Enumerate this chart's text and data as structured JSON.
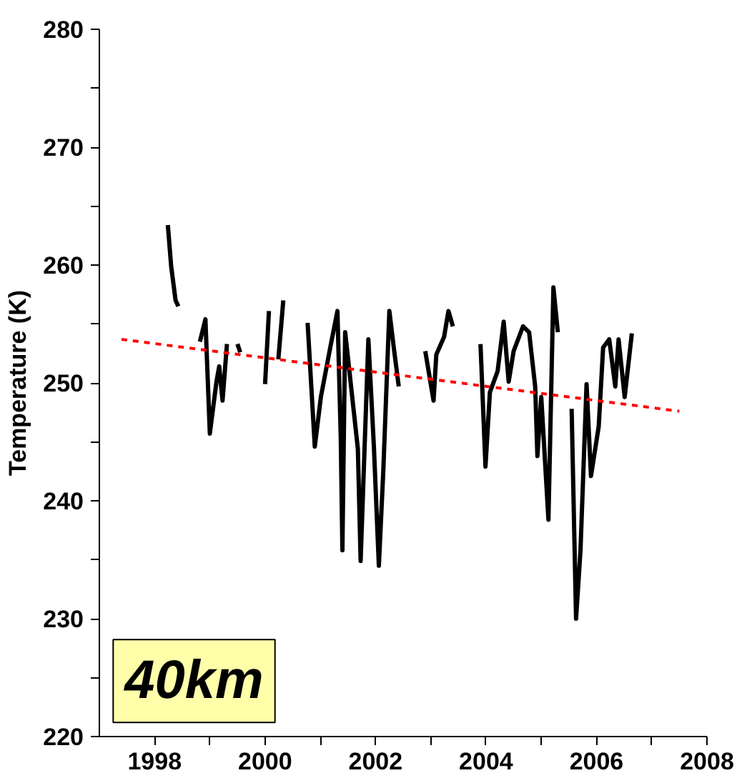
{
  "chart_data": {
    "type": "line",
    "ylabel": "Temperature (K)",
    "xlim": [
      1997,
      2008
    ],
    "ylim": [
      220,
      280
    ],
    "xticks": [
      1998,
      {
        "value": 1999,
        "label": null
      },
      2000,
      {
        "value": 2001,
        "label": null
      },
      2002,
      {
        "value": 2003,
        "label": null
      },
      2004,
      {
        "value": 2005,
        "label": null
      },
      2006,
      {
        "value": 2007,
        "label": null
      },
      2008
    ],
    "yticks": [
      220,
      {
        "value": 225,
        "label": null
      },
      230,
      {
        "value": 235,
        "label": null
      },
      240,
      {
        "value": 245,
        "label": null
      },
      250,
      {
        "value": 255,
        "label": null
      },
      260,
      {
        "value": 265,
        "label": null
      },
      270,
      {
        "value": 275,
        "label": null
      },
      280
    ],
    "grid": false,
    "annotations": [
      "40km"
    ],
    "series": [
      {
        "color": "#000000",
        "line_style": "solid",
        "x": [
          1998.24,
          1998.3,
          1998.38,
          1998.43,
          1998.6,
          1998.82,
          1998.92,
          1999.0,
          1999.12,
          1999.17,
          1999.23,
          1999.31,
          1999.45,
          1999.5,
          1999.55,
          1999.8,
          2000.0,
          2000.07,
          2000.15,
          2000.24,
          2000.33,
          2000.6,
          2000.77,
          2000.9,
          2001.01,
          2001.18,
          2001.31,
          2001.37,
          2001.4,
          2001.45,
          2001.68,
          2001.73,
          2001.87,
          2001.97,
          2002.06,
          2002.14,
          2002.25,
          2002.33,
          2002.42,
          2002.7,
          2002.9,
          2003.05,
          2003.1,
          2003.24,
          2003.32,
          2003.4,
          2003.7,
          2003.9,
          2003.99,
          2004.07,
          2004.21,
          2004.32,
          2004.41,
          2004.5,
          2004.67,
          2004.78,
          2004.89,
          2004.93,
          2005.0,
          2005.13,
          2005.22,
          2005.3,
          2005.45,
          2005.55,
          2005.63,
          2005.71,
          2005.82,
          2005.9,
          2006.04,
          2006.12,
          2006.23,
          2006.34,
          2006.4,
          2006.51,
          2006.64
        ],
        "values": [
          263.4,
          259.9,
          257,
          256.5,
          null,
          253.5,
          255.4,
          245.7,
          250.1,
          251.4,
          248.5,
          253.3,
          null,
          253.3,
          252.6,
          null,
          249.9,
          256.1,
          null,
          252,
          257,
          null,
          255.1,
          244.6,
          248.8,
          253,
          256.1,
          245.4,
          235.8,
          254.3,
          244.4,
          234.9,
          253.7,
          244.6,
          234.5,
          242.5,
          256.1,
          253,
          249.7,
          null,
          252.7,
          248.5,
          252.4,
          253.9,
          256.1,
          254.8,
          null,
          253.3,
          242.9,
          249.2,
          251,
          255.2,
          250.1,
          252.7,
          254.8,
          254.3,
          249.7,
          243.8,
          248.8,
          238.4,
          258.1,
          254.3,
          null,
          247.8,
          230,
          235.8,
          249.9,
          242.1,
          246.3,
          253,
          253.7,
          249.7,
          253.7,
          248.8,
          254.2
        ]
      },
      {
        "color": "#ff0000",
        "line_style": "dashed",
        "x": [
          1997.4,
          2007.5
        ],
        "values": [
          253.7,
          247.6
        ]
      }
    ]
  }
}
